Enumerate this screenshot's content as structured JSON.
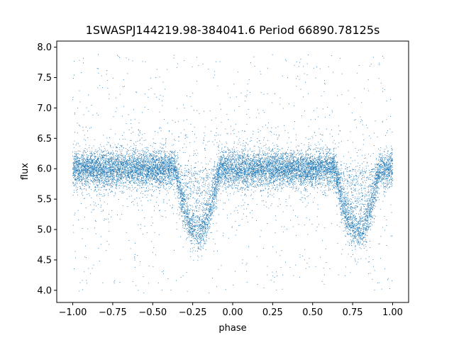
{
  "chart_data": {
    "type": "scatter",
    "title": "1SWASPJ144219.98-384041.6 Period 66890.78125s",
    "xlabel": "phase",
    "ylabel": "flux",
    "xlim": [
      -1.1,
      1.1
    ],
    "ylim": [
      3.8,
      8.1
    ],
    "xticks": [
      -1.0,
      -0.75,
      -0.5,
      -0.25,
      0.0,
      0.25,
      0.5,
      0.75,
      1.0
    ],
    "xtick_labels": [
      "−1.00",
      "−0.75",
      "−0.50",
      "−0.25",
      "0.00",
      "0.25",
      "0.50",
      "0.75",
      "1.00"
    ],
    "yticks": [
      4.0,
      4.5,
      5.0,
      5.5,
      6.0,
      6.5,
      7.0,
      7.5,
      8.0
    ],
    "ytick_labels": [
      "4.0",
      "4.5",
      "5.0",
      "5.5",
      "6.0",
      "6.5",
      "7.0",
      "7.5",
      "8.0"
    ],
    "grid": false,
    "marker_color": "#1f77b4",
    "series": [
      {
        "x_range": [
          -1.0,
          1.0
        ],
        "baseline_flux": 6.0,
        "baseline_scatter": 0.15,
        "dips": [
          {
            "center_phase": -0.22,
            "min_flux": 4.95
          },
          {
            "center_phase": 0.78,
            "min_flux": 4.95
          }
        ]
      }
    ]
  }
}
